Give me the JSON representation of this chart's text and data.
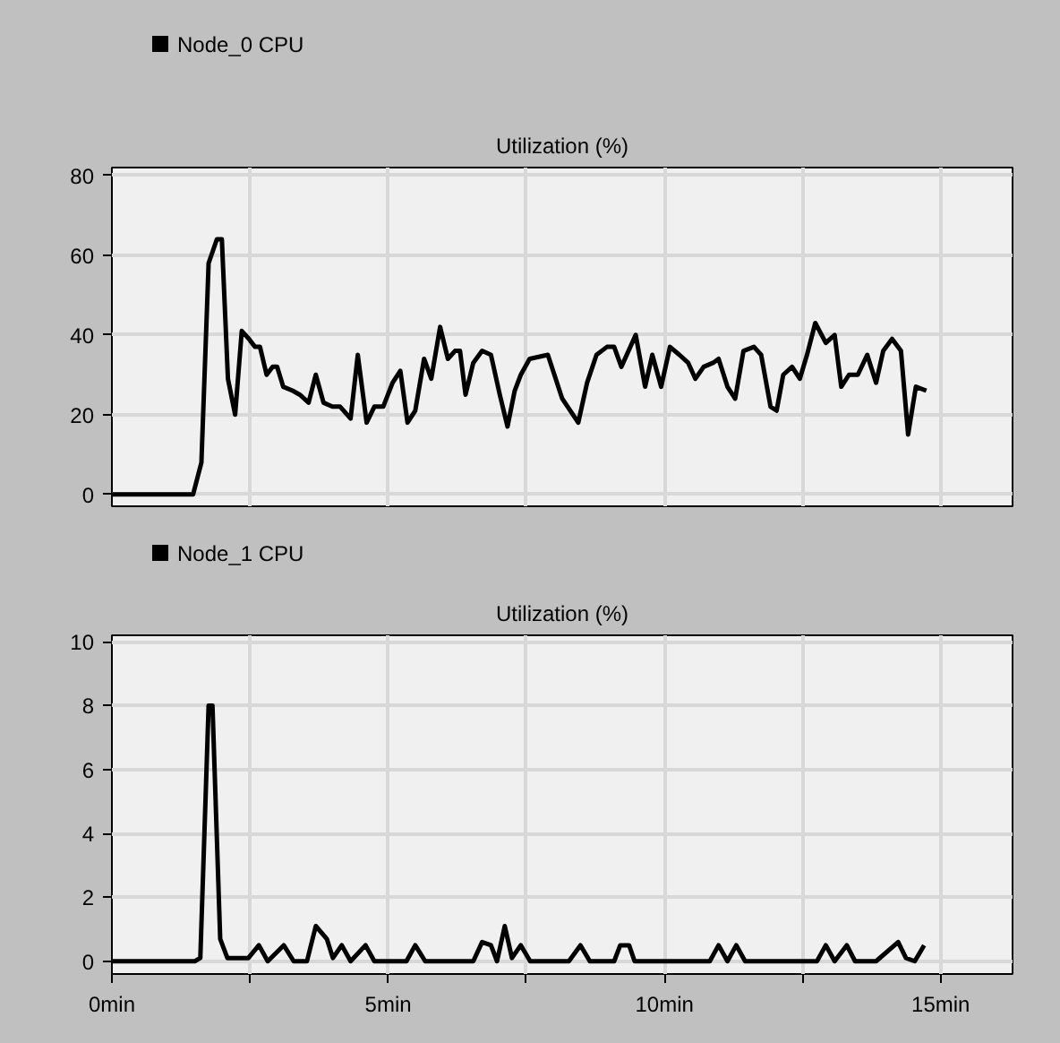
{
  "chart_data": [
    {
      "type": "line",
      "title": "Utilization (%)",
      "xlim": [
        0,
        16.3
      ],
      "xticks": [
        {
          "value": 0,
          "label": null
        },
        {
          "value": 2.5,
          "label": null
        },
        {
          "value": 5,
          "label": null
        },
        {
          "value": 7.5,
          "label": null
        },
        {
          "value": 10,
          "label": null
        },
        {
          "value": 12.5,
          "label": null
        },
        {
          "value": 15,
          "label": null
        }
      ],
      "ylim": [
        -3,
        82
      ],
      "yticks": [
        0,
        20,
        40,
        60,
        80
      ],
      "grid": true,
      "legend": "top left",
      "tick_labels": "y",
      "line_style": "solid",
      "series": [
        {
          "name": "Node_0 CPU",
          "color": "#000000",
          "x": [
            0,
            1.47,
            1.62,
            1.75,
            1.9,
            1.99,
            2.1,
            2.23,
            2.35,
            2.48,
            2.59,
            2.68,
            2.8,
            2.91,
            2.99,
            3.1,
            3.27,
            3.4,
            3.56,
            3.69,
            3.83,
            3.99,
            4.13,
            4.32,
            4.45,
            4.61,
            4.75,
            4.91,
            5.08,
            5.22,
            5.35,
            5.49,
            5.65,
            5.78,
            5.94,
            6.08,
            6.21,
            6.3,
            6.4,
            6.54,
            6.7,
            6.86,
            7.02,
            7.16,
            7.29,
            7.4,
            7.56,
            7.89,
            8.15,
            8.44,
            8.6,
            8.77,
            8.96,
            9.09,
            9.22,
            9.48,
            9.65,
            9.78,
            9.94,
            10.1,
            10.27,
            10.43,
            10.56,
            10.71,
            10.88,
            10.98,
            11.14,
            11.28,
            11.43,
            11.62,
            11.75,
            11.92,
            12.03,
            12.15,
            12.31,
            12.45,
            12.58,
            12.73,
            12.92,
            13.08,
            13.2,
            13.34,
            13.5,
            13.67,
            13.83,
            13.96,
            14.12,
            14.28,
            14.41,
            14.55,
            14.74
          ],
          "values": [
            0,
            0,
            8,
            58,
            64,
            64,
            29,
            20,
            41,
            39,
            37,
            37,
            30,
            32,
            32,
            27,
            26,
            25,
            23,
            30,
            23,
            22,
            22,
            19,
            35,
            18,
            22,
            22,
            28,
            31,
            18,
            21,
            34,
            29,
            42,
            34,
            36,
            36,
            25,
            33,
            36,
            35,
            25,
            17,
            26,
            30,
            34,
            35,
            24,
            18,
            28,
            35,
            37,
            37,
            32,
            40,
            27,
            35,
            27,
            37,
            35,
            33,
            29,
            32,
            33,
            34,
            27,
            24,
            36,
            37,
            35,
            22,
            21,
            30,
            32,
            29,
            35,
            43,
            38,
            40,
            27,
            30,
            30,
            35,
            28,
            36,
            39,
            36,
            15,
            27,
            26
          ]
        }
      ]
    },
    {
      "type": "line",
      "title": "Utilization (%)",
      "xlim": [
        0,
        16.3
      ],
      "xticks": [
        {
          "value": 0,
          "label": "0min"
        },
        {
          "value": 2.5,
          "label": null
        },
        {
          "value": 5,
          "label": "5min"
        },
        {
          "value": 7.5,
          "label": null
        },
        {
          "value": 10,
          "label": "10min"
        },
        {
          "value": 12.5,
          "label": null
        },
        {
          "value": 15,
          "label": "15min"
        }
      ],
      "ylim": [
        -0.4,
        10.2
      ],
      "yticks": [
        0,
        2,
        4,
        6,
        8,
        10
      ],
      "grid": true,
      "legend": "top left",
      "line_style": "solid",
      "series": [
        {
          "name": "Node_1 CPU",
          "color": "#000000",
          "x": [
            0,
            1.5,
            1.6,
            1.75,
            1.82,
            1.96,
            2.09,
            2.47,
            2.66,
            2.82,
            3.11,
            3.29,
            3.53,
            3.69,
            3.89,
            4.0,
            4.16,
            4.32,
            4.59,
            4.75,
            5.33,
            5.49,
            5.67,
            6.54,
            6.7,
            6.86,
            6.97,
            7.11,
            7.24,
            7.4,
            7.57,
            8.27,
            8.48,
            8.65,
            9.09,
            9.2,
            9.36,
            9.46,
            10.82,
            10.98,
            11.14,
            11.3,
            11.46,
            12.76,
            12.92,
            13.08,
            13.3,
            13.45,
            13.83,
            14.23,
            14.37,
            14.53,
            14.7
          ],
          "values": [
            0,
            0,
            0.1,
            8,
            8,
            0.7,
            0.1,
            0.1,
            0.5,
            0,
            0.5,
            0,
            0,
            1.1,
            0.7,
            0.1,
            0.5,
            0,
            0.5,
            0,
            0,
            0.5,
            0,
            0,
            0.6,
            0.5,
            0,
            1.1,
            0.1,
            0.5,
            0,
            0,
            0.5,
            0,
            0,
            0.5,
            0.5,
            0,
            0,
            0.5,
            0,
            0.5,
            0,
            0,
            0.5,
            0,
            0.5,
            0,
            0,
            0.6,
            0.1,
            0,
            0.5
          ]
        }
      ]
    }
  ]
}
